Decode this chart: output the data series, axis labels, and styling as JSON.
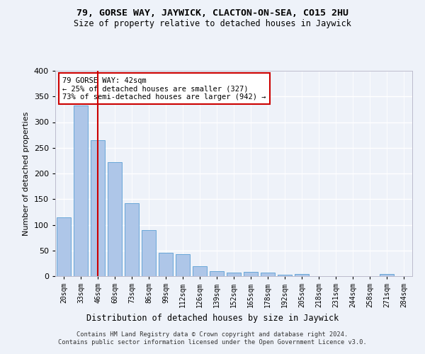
{
  "title1": "79, GORSE WAY, JAYWICK, CLACTON-ON-SEA, CO15 2HU",
  "title2": "Size of property relative to detached houses in Jaywick",
  "xlabel": "Distribution of detached houses by size in Jaywick",
  "ylabel": "Number of detached properties",
  "categories": [
    "20sqm",
    "33sqm",
    "46sqm",
    "60sqm",
    "73sqm",
    "86sqm",
    "99sqm",
    "112sqm",
    "126sqm",
    "139sqm",
    "152sqm",
    "165sqm",
    "178sqm",
    "192sqm",
    "205sqm",
    "218sqm",
    "231sqm",
    "244sqm",
    "258sqm",
    "271sqm",
    "284sqm"
  ],
  "values": [
    115,
    332,
    265,
    222,
    142,
    90,
    45,
    43,
    20,
    10,
    7,
    8,
    7,
    3,
    4,
    0,
    0,
    0,
    0,
    4,
    0
  ],
  "bar_color": "#aec6e8",
  "bar_edge_color": "#5a9fd4",
  "vline_color": "#cc0000",
  "vline_x_index": 2,
  "annotation_text": "79 GORSE WAY: 42sqm\n← 25% of detached houses are smaller (327)\n73% of semi-detached houses are larger (942) →",
  "annotation_box_color": "#ffffff",
  "annotation_box_edge": "#cc0000",
  "background_color": "#eef2f9",
  "grid_color": "#ffffff",
  "footer": "Contains HM Land Registry data © Crown copyright and database right 2024.\nContains public sector information licensed under the Open Government Licence v3.0.",
  "ylim": [
    0,
    400
  ],
  "yticks": [
    0,
    50,
    100,
    150,
    200,
    250,
    300,
    350,
    400
  ]
}
